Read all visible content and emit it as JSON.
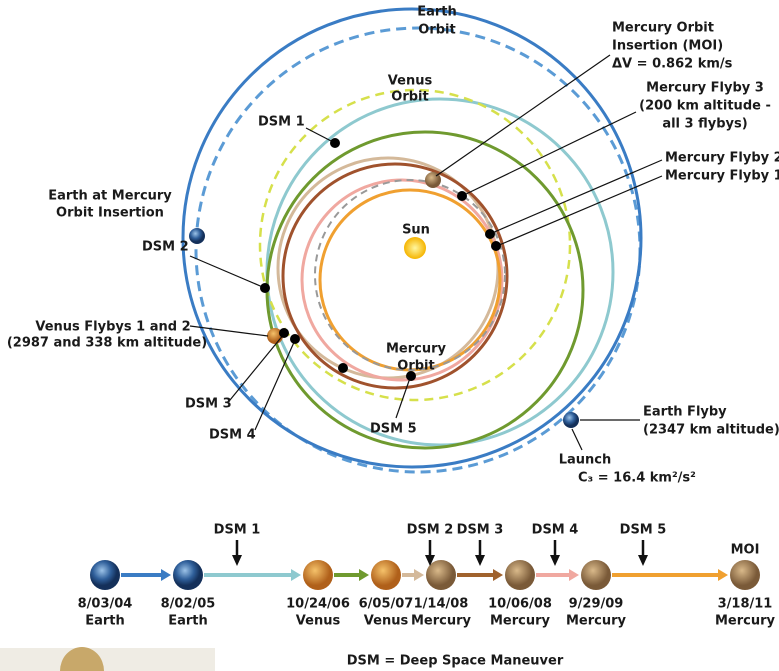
{
  "orbits": {
    "earth": [
      "Earth",
      "Orbit"
    ],
    "venus": [
      "Venus",
      "Orbit"
    ],
    "mercury": [
      "Mercury",
      "Orbit"
    ],
    "sun": "Sun"
  },
  "callouts": {
    "moi": [
      "Mercury Orbit",
      "Insertion (MOI)",
      "ΔV = 0.862 km/s"
    ],
    "flyby3": [
      "Mercury Flyby 3",
      "(200 km altitude -",
      "all 3 flybys)"
    ],
    "flyby2": "Mercury Flyby 2",
    "flyby1": "Mercury Flyby 1",
    "earth_moi": [
      "Earth at Mercury",
      "Orbit Insertion"
    ],
    "dsm1": "DSM 1",
    "dsm2": "DSM 2",
    "dsm3": "DSM 3",
    "dsm4": "DSM 4",
    "dsm5": "DSM 5",
    "venus_flybys": [
      "Venus Flybys 1 and 2",
      "(2987 and 338 km altitude)"
    ],
    "earth_flyby": [
      "Earth Flyby",
      "(2347 km altitude)"
    ],
    "launch": [
      "Launch",
      "C₃ = 16.4 km²/s²"
    ]
  },
  "timeline": {
    "events": [
      {
        "date": "8/03/04",
        "body": "Earth"
      },
      {
        "date": "8/02/05",
        "body": "Earth"
      },
      {
        "date": "10/24/06",
        "body": "Venus"
      },
      {
        "date": "6/05/07",
        "body": "Venus"
      },
      {
        "date": "1/14/08",
        "body": "Mercury"
      },
      {
        "date": "10/06/08",
        "body": "Mercury"
      },
      {
        "date": "9/29/09",
        "body": "Mercury"
      },
      {
        "date": "3/18/11",
        "body": "Mercury"
      }
    ],
    "maneuvers": [
      "DSM 1",
      "DSM 2",
      "DSM 3",
      "DSM 4",
      "DSM 5",
      "MOI"
    ]
  },
  "footer": "DSM = Deep Space Maneuver"
}
